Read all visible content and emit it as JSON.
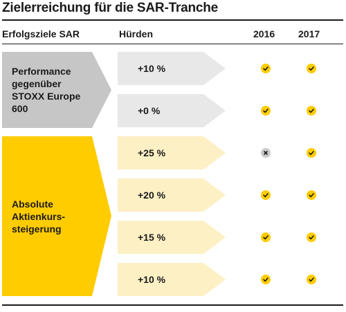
{
  "title": "Zielerreichung für die SAR-Tranche",
  "headers": {
    "goals": "Erfolgsziele SAR",
    "hurdles": "Hürden",
    "y2016": "2016",
    "y2017": "2017"
  },
  "colors": {
    "goal_grey": "#c6c6c6",
    "hurdle_grey": "#e8e8e8",
    "goal_yellow": "#ffcc00",
    "hurdle_yellow": "#fdf0c4",
    "check": "#ffcc00",
    "fail": "#cccccc"
  },
  "goals": [
    {
      "label_lines": [
        "Performance",
        "gegenüber",
        "STOXX Europe",
        "600"
      ]
    },
    {
      "label_lines": [
        "Absolute",
        "Aktienkurs-",
        "steigerung"
      ]
    }
  ],
  "rows": [
    {
      "hurdle": "+10 %",
      "y2016": "achieved",
      "y2017": "achieved"
    },
    {
      "hurdle": "+0 %",
      "y2016": "achieved",
      "y2017": "achieved"
    },
    {
      "hurdle": "+25 %",
      "y2016": "not-achieved",
      "y2017": "achieved"
    },
    {
      "hurdle": "+20 %",
      "y2016": "achieved",
      "y2017": "achieved"
    },
    {
      "hurdle": "+15 %",
      "y2016": "achieved",
      "y2017": "achieved"
    },
    {
      "hurdle": "+10 %",
      "y2016": "achieved",
      "y2017": "achieved"
    }
  ]
}
